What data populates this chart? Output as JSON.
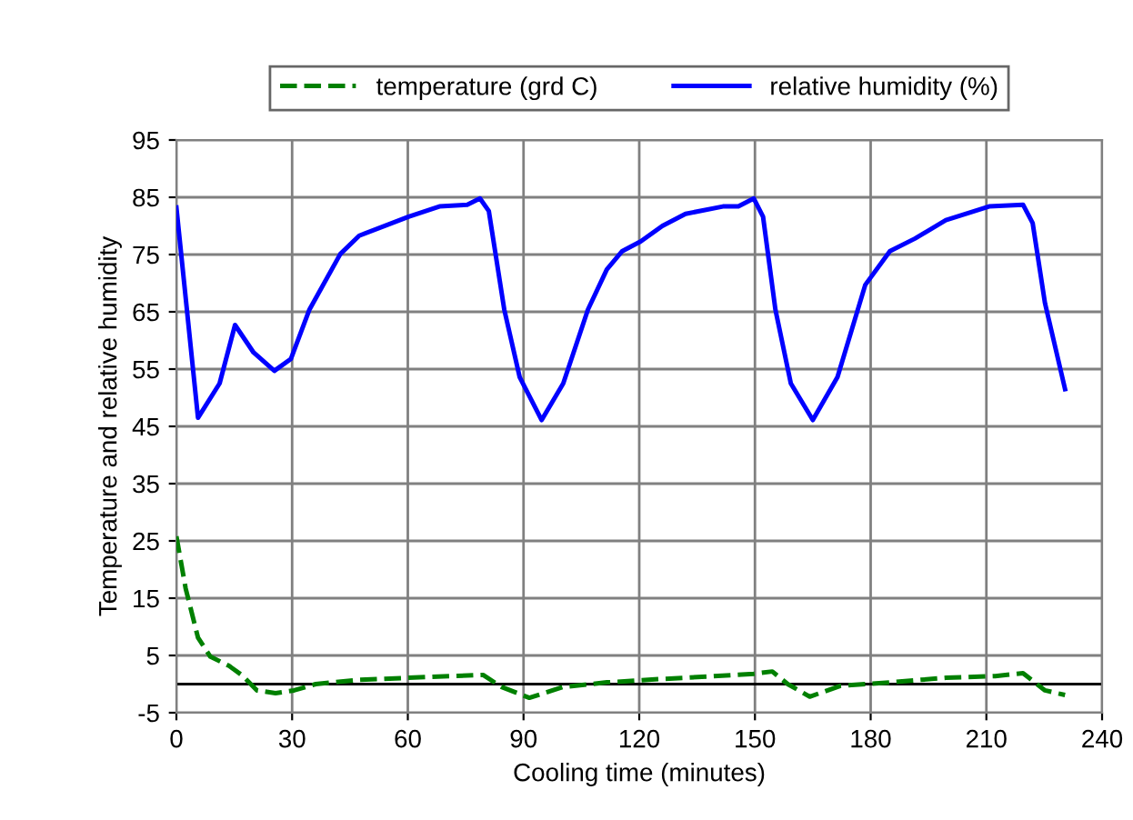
{
  "chart_data": {
    "type": "line",
    "xlabel": "Cooling time (minutes)",
    "ylabel": "Temperature and relative humidity",
    "xlim": [
      0,
      240
    ],
    "xticks": [
      0,
      30,
      60,
      90,
      120,
      150,
      180,
      210,
      240
    ],
    "ylim": [
      -5,
      95
    ],
    "yticks": [
      -5,
      5,
      15,
      25,
      35,
      45,
      55,
      65,
      75,
      85,
      95
    ],
    "grid": true,
    "legend": "top",
    "marker": "none",
    "ref_lines": [
      {
        "axis": "y",
        "value": 0,
        "color": "#000000"
      }
    ],
    "series": [
      {
        "name": "temperature (grd C)",
        "color": "#008000",
        "line_style": "dashed",
        "x": [
          0,
          2.4,
          5.6,
          8.8,
          13.6,
          16.9,
          20.9,
          25.7,
          30.5,
          36.1,
          47.4,
          60.2,
          71.4,
          79.5,
          84.3,
          91.5,
          100.3,
          111.6,
          126,
          132,
          149.7,
          154.5,
          158.5,
          164.2,
          172.2,
          185,
          199.5,
          212.3,
          219.5,
          225.2,
          230.4
        ],
        "values": [
          25.8,
          16.7,
          8.1,
          4.8,
          3.2,
          1.6,
          -1.1,
          -1.6,
          -1.1,
          0,
          0.75,
          1.1,
          1.4,
          1.6,
          -0.5,
          -2.4,
          -0.5,
          0.3,
          0.9,
          1.1,
          1.8,
          2.2,
          0,
          -2.2,
          -0.3,
          0.3,
          1.1,
          1.4,
          1.9,
          -1.1,
          -1.9
        ]
      },
      {
        "name": "relative humidity (%)",
        "color": "#0000ff",
        "line_style": "solid",
        "x": [
          0,
          5.6,
          11.2,
          15.2,
          20,
          25.4,
          29.7,
          34.5,
          42.5,
          47.4,
          60.2,
          68.2,
          75.4,
          78.7,
          81,
          85,
          89,
          94.7,
          100.3,
          106.7,
          111.6,
          115.6,
          120.4,
          126,
          132,
          141.7,
          145.7,
          149.7,
          152.1,
          155.3,
          159.3,
          165,
          171.4,
          178.6,
          185,
          191.5,
          199.5,
          210.7,
          219.5,
          222,
          225.2,
          230.4
        ],
        "values": [
          83.2,
          46.5,
          52.5,
          62.7,
          57.9,
          54.7,
          56.8,
          65.4,
          75.1,
          78.3,
          81.6,
          83.4,
          83.7,
          84.8,
          82.6,
          65.4,
          53.6,
          46.1,
          52.5,
          65.4,
          72.4,
          75.6,
          77.3,
          80,
          82.1,
          83.4,
          83.4,
          84.8,
          81.6,
          65.4,
          52.5,
          46.1,
          53.6,
          69.7,
          75.6,
          77.8,
          81,
          83.4,
          83.7,
          80.5,
          66.5,
          51.5
        ]
      }
    ]
  }
}
